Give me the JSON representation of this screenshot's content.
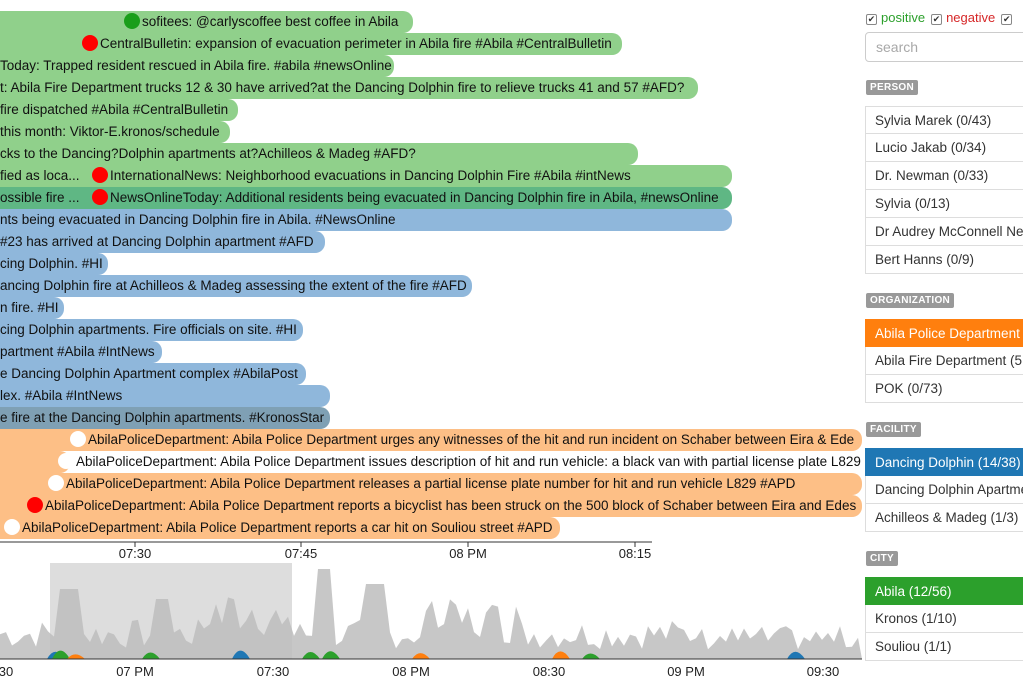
{
  "messages": [
    {
      "text": "sofitees: @carlyscoffee best coffee in Abila",
      "dot": "green"
    },
    {
      "text": "CentralBulletin: expansion of evacuation perimeter in Abila fire #Abila #CentralBulletin",
      "dot": "red"
    },
    {
      "text": "Today: Trapped resident rescued in Abila fire. #abila #newsOnline",
      "dot": ""
    },
    {
      "text": "t: Abila Fire Department trucks 12 & 30 have arrived?at the Dancing Dolphin fire to relieve trucks 41 and 57 #AFD?",
      "dot": ""
    },
    {
      "text": "fire dispatched #Abila #CentralBulletin",
      "dot": ""
    },
    {
      "text": "this month: Viktor-E.kronos/schedule",
      "dot": ""
    },
    {
      "text": "cks to the Dancing?Dolphin apartments at?Achilleos & Madeg #AFD?",
      "dot": ""
    },
    {
      "text": "fied as loca...",
      "dot": ""
    },
    {
      "text": "ossible fire ...",
      "dot": ""
    },
    {
      "text": "nts being evacuated in Dancing Dolphin fire in Abila. #NewsOnline",
      "dot": ""
    },
    {
      "text": "#23 has arrived at Dancing Dolphin apartment #AFD",
      "dot": ""
    },
    {
      "text": "cing Dolphin. #HI",
      "dot": ""
    },
    {
      "text": "ancing Dolphin fire at Achilleos & Madeg assessing the extent of the fire #AFD",
      "dot": ""
    },
    {
      "text": "n fire. #HI",
      "dot": ""
    },
    {
      "text": "cing Dolphin apartments. Fire officials on site. #HI",
      "dot": ""
    },
    {
      "text": "partment #Abila #IntNews",
      "dot": ""
    },
    {
      "text": "e Dancing Dolphin Apartment complex #AbilaPost",
      "dot": ""
    },
    {
      "text": "lex. #Abila #IntNews",
      "dot": ""
    },
    {
      "text": "e fire at the Dancing Dolphin apartments. #KronosStar",
      "dot": ""
    },
    {
      "text": "AbilaPoliceDepartment: Abila Police Department urges any witnesses of the hit and run incident on Schaber between Eira & Ede",
      "dot": "white"
    },
    {
      "text": "AbilaPoliceDepartment: Abila Police Department issues description of hit and run vehicle: a black van with partial license plate L829",
      "dot": "white"
    },
    {
      "text": "AbilaPoliceDepartment: Abila Police Department releases a partial license plate number for hit and run vehicle L829 #APD",
      "dot": "white"
    },
    {
      "text": "AbilaPoliceDepartment: Abila Police Department reports a bicyclist has been struck on the 500 block of Schaber between Eira and Edes",
      "dot": "red"
    },
    {
      "text": "AbilaPoliceDepartment: Abila Police Department reports a car hit on Souliou street #APD",
      "dot": "white"
    }
  ],
  "overlay_messages": [
    {
      "text": "InternationalNews: Neighborhood evacuations in Dancing Dolphin Fire #Abila #intNews",
      "dot": "red"
    },
    {
      "text": "NewsOnlineToday: Additional residents being evacuated in Dancing Dolphin fire in Abila, #newsOnline",
      "dot": "red"
    }
  ],
  "axis_top": [
    "07:30",
    "07:45",
    "08 PM",
    "08:15"
  ],
  "axis_bottom": [
    "30",
    "07 PM",
    "07:30",
    "08 PM",
    "08:30",
    "09 PM",
    "09:30"
  ],
  "filters": [
    {
      "label": "positive",
      "color": "#2ca02c",
      "checked": true
    },
    {
      "label": "negative",
      "color": "#d62728",
      "checked": true
    },
    {
      "label": "",
      "color": "#333",
      "checked": true
    }
  ],
  "search_placeholder": "search",
  "sections": [
    {
      "title": "PERSON",
      "items": [
        {
          "label": "Sylvia Marek (0/43)",
          "selected": ""
        },
        {
          "label": "Lucio Jakab (0/34)",
          "selected": ""
        },
        {
          "label": "Dr. Newman (0/33)",
          "selected": ""
        },
        {
          "label": "Sylvia (0/13)",
          "selected": ""
        },
        {
          "label": "Dr Audrey McConnell Ne",
          "selected": ""
        },
        {
          "label": "Bert Hanns (0/9)",
          "selected": ""
        }
      ]
    },
    {
      "title": "ORGANIZATION",
      "items": [
        {
          "label": "Abila Police Department",
          "selected": "orange"
        },
        {
          "label": "Abila Fire Department (5",
          "selected": ""
        },
        {
          "label": "POK (0/73)",
          "selected": ""
        }
      ]
    },
    {
      "title": "FACILITY",
      "items": [
        {
          "label": "Dancing Dolphin (14/38)",
          "selected": "blue"
        },
        {
          "label": "Dancing Dolphin Apartme",
          "selected": ""
        },
        {
          "label": "Achilleos & Madeg (1/3)",
          "selected": ""
        }
      ]
    },
    {
      "title": "CITY",
      "items": [
        {
          "label": "Abila (12/56)",
          "selected": "green"
        },
        {
          "label": "Kronos (1/10)",
          "selected": ""
        },
        {
          "label": "Souliou (1/1)",
          "selected": ""
        }
      ]
    }
  ],
  "colors": {
    "green": "#90d08b",
    "blue": "#8fb7db",
    "orange": "#fdbf86",
    "red_dot": "#ff0000",
    "green_dot": "#1a9e1a"
  }
}
